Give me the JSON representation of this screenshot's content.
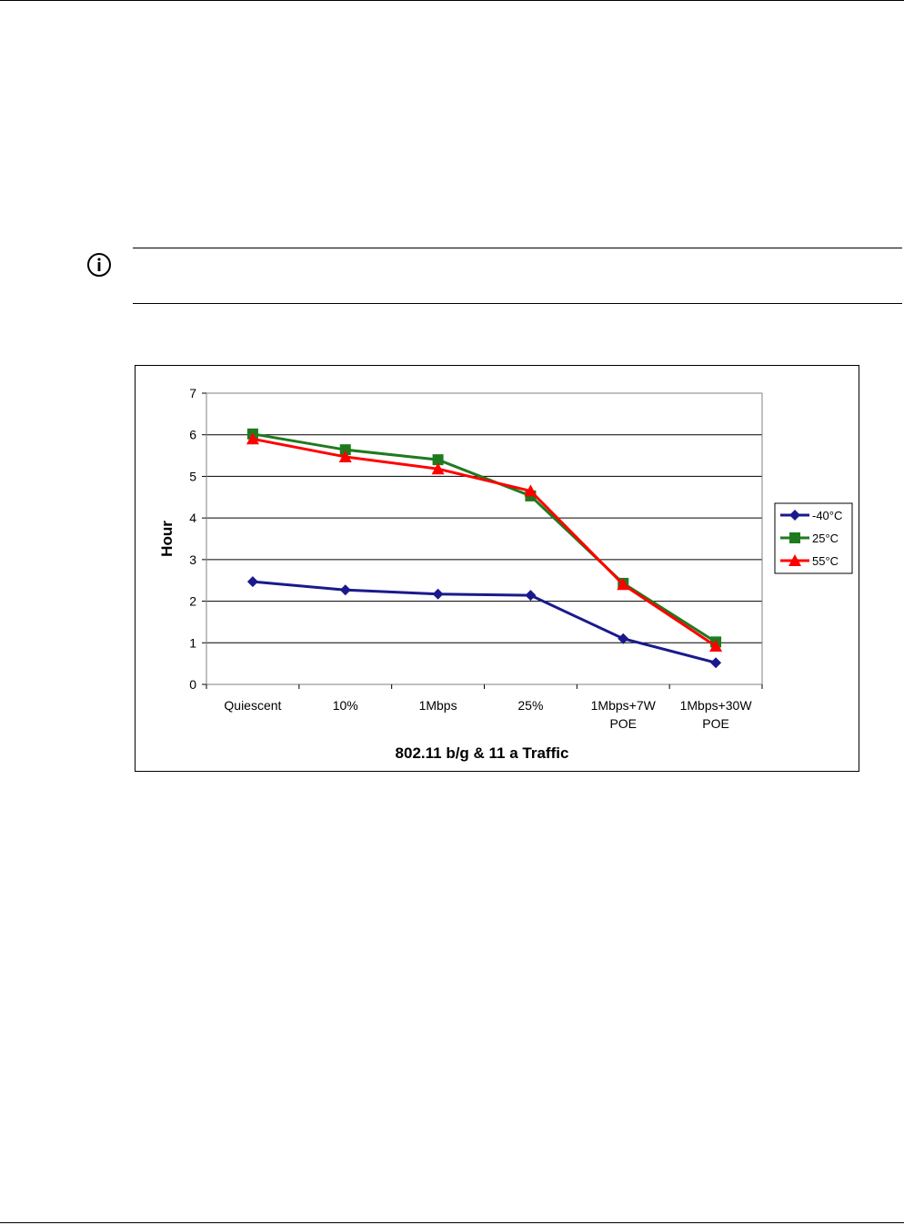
{
  "chart_data": {
    "type": "line",
    "categories": [
      "Quiescent",
      "10%",
      "1Mbps",
      "25%",
      "1Mbps+7W\nPOE",
      "1Mbps+30W\nPOE"
    ],
    "series": [
      {
        "name": "-40°C",
        "values": [
          2.47,
          2.27,
          2.17,
          2.14,
          1.1,
          0.52
        ],
        "color": "#1a1a8c",
        "marker": "diamond"
      },
      {
        "name": "25°C",
        "values": [
          6.02,
          5.64,
          5.4,
          4.53,
          2.43,
          1.02
        ],
        "color": "#1f7a1f",
        "marker": "square"
      },
      {
        "name": "55°C",
        "values": [
          5.9,
          5.47,
          5.18,
          4.65,
          2.4,
          0.92
        ],
        "color": "#ff0000",
        "marker": "triangle"
      }
    ],
    "xlabel": "802.11 b/g & 11 a Traffic",
    "ylabel": "Hour",
    "ylim": [
      0,
      7
    ],
    "yticks": [
      0,
      1,
      2,
      3,
      4,
      5,
      6,
      7
    ],
    "grid": true,
    "legend_position": "right"
  }
}
